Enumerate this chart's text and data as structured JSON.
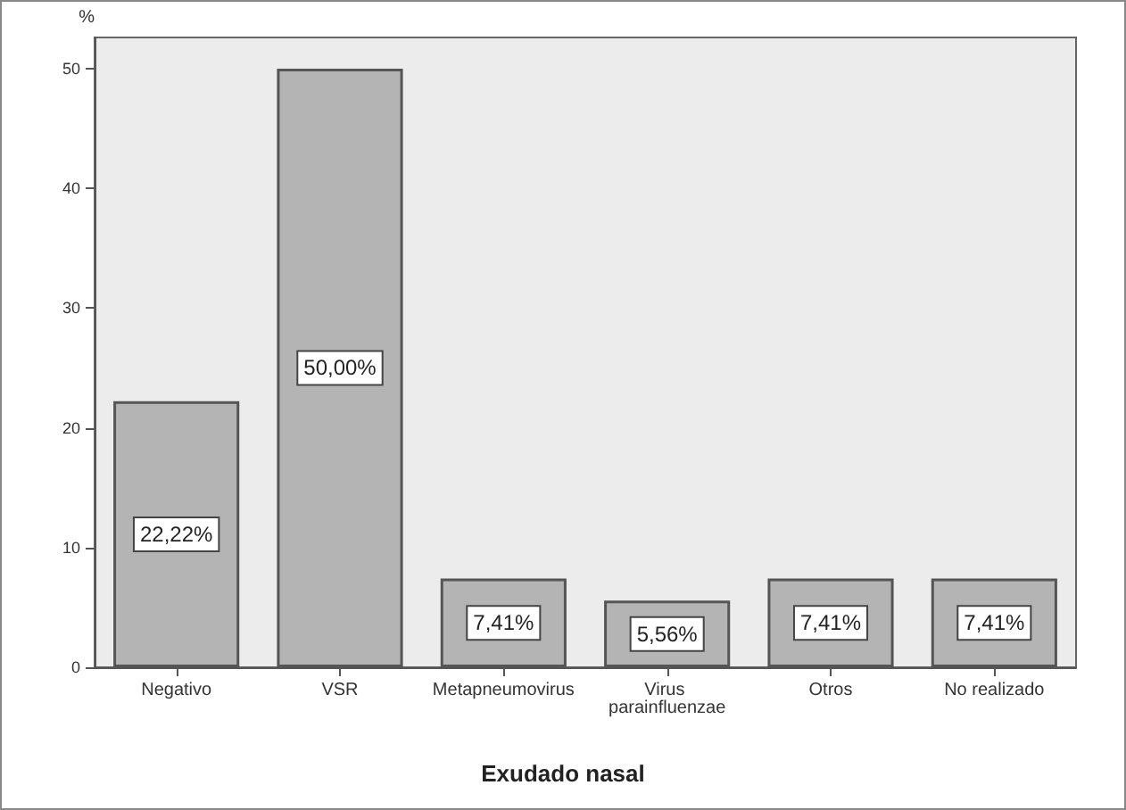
{
  "chart_data": {
    "type": "bar",
    "xlabel": "Exudado nasal",
    "ylabel": "%",
    "categories": [
      "Negativo",
      "VSR",
      "Metapneumovirus",
      "Virus parainfluenzae",
      "Otros",
      "No realizado"
    ],
    "values": [
      22.22,
      50,
      7.41,
      5.56,
      7.41,
      7.41
    ],
    "value_labels": [
      "22,22%",
      "50,00%",
      "7,41%",
      "5,56%",
      "7,41%",
      "7,41%"
    ],
    "color": "#b4b4b4",
    "ylim": [
      0,
      52.6
    ],
    "yticks": [
      0,
      10,
      20,
      30,
      40,
      50
    ],
    "grid": false
  }
}
